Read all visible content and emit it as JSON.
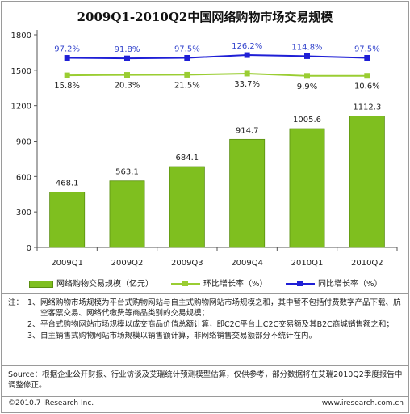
{
  "chart_data": {
    "type": "bar",
    "title": "2009Q1-2010Q2中国网络购物市场交易规模",
    "categories": [
      "2009Q1",
      "2009Q2",
      "2009Q3",
      "2009Q4",
      "2010Q1",
      "2010Q2"
    ],
    "ylim": [
      0,
      1800
    ],
    "yticks": [
      0,
      300,
      600,
      900,
      1200,
      1500,
      1800
    ],
    "bar_series": {
      "name": "网络购物交易规模（亿元）",
      "values": [
        468.1,
        563.1,
        684.1,
        914.7,
        1005.6,
        1112.3
      ],
      "labels": [
        "468.1",
        "563.1",
        "684.1",
        "914.7",
        "1005.6",
        "1112.3"
      ],
      "color": "#7fbf1f"
    },
    "line_series": [
      {
        "name": "环比增长率（%）",
        "values": [
          15.8,
          20.3,
          21.5,
          33.7,
          9.9,
          10.6
        ],
        "labels": [
          "15.8%",
          "20.3%",
          "21.5%",
          "33.7%",
          "9.9%",
          "10.6%"
        ],
        "color": "#9acd32",
        "label_color": "#222222"
      },
      {
        "name": "同比增长率（%）",
        "values": [
          97.2,
          91.8,
          97.5,
          126.2,
          114.8,
          97.5
        ],
        "labels": [
          "97.2%",
          "91.8%",
          "97.5%",
          "126.2%",
          "114.8%",
          "97.5%"
        ],
        "color": "#1f1fd6",
        "label_color": "#3344cc"
      }
    ],
    "grid": false,
    "legend_position": "bottom"
  },
  "notes": {
    "lead": "注：",
    "items": [
      {
        "num": "1、",
        "text": "网络购物市场规模为平台式购物网站与自主式购物网站市场规模之和，其中暂不包括付费数字产品下载、航空客票交易、网络代缴费等商品类别的交易规模；"
      },
      {
        "num": "2、",
        "text": "平台式购物网站市场规模以成交商品价值总额计算，即C2C平台上C2C交易额及其B2C商城销售额之和；"
      },
      {
        "num": "3、",
        "text": "自主销售式购物网站市场规模以销售额计算，非网络销售交易额部分不统计在内。"
      }
    ]
  },
  "source": "Source：根据企业公开财报、行业访谈及艾瑞统计预测模型估算，仅供参考，部分数据将在艾瑞2010Q2季度报告中调整修正。",
  "footer": {
    "copyright": "©2010.7 iResearch Inc.",
    "website": "www.iresearch.com.cn"
  }
}
